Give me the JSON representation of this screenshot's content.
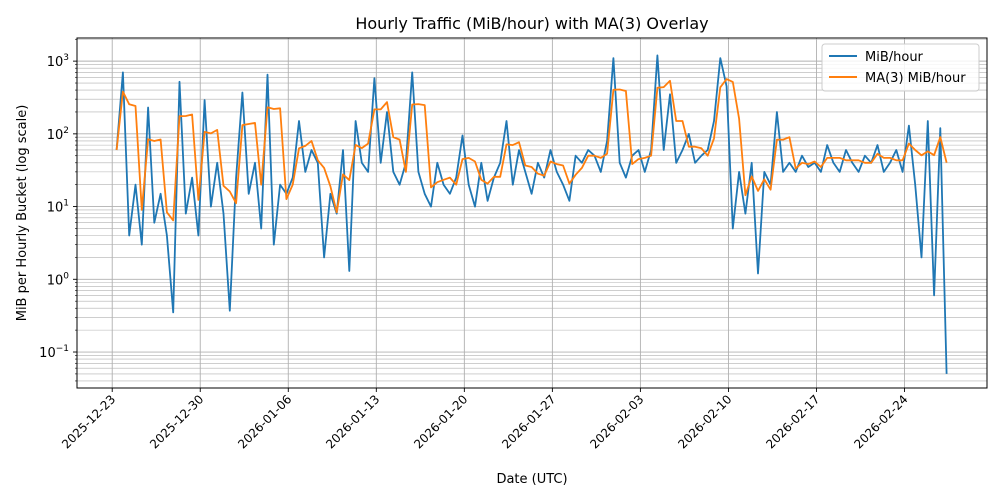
{
  "chart_data": {
    "type": "line",
    "title": "Hourly Traffic (MiB/hour) with MA(3) Overlay",
    "xlabel": "Date (UTC)",
    "ylabel": "MiB per Hourly Bucket (log scale)",
    "yscale": "log",
    "ylim": [
      0.032,
      2080
    ],
    "xlim_days_from_2025_12_23": [
      -2.8,
      69.56
    ],
    "x_tick_labels": [
      "2025-12-23",
      "2025-12-30",
      "2026-01-06",
      "2026-01-13",
      "2026-01-20",
      "2026-01-27",
      "2026-02-03",
      "2026-02-10",
      "2026-02-17",
      "2026-02-24"
    ],
    "y_tick_labels": [
      {
        "base": "10",
        "exp": "−1",
        "value": 0.1
      },
      {
        "base": "10",
        "exp": "0",
        "value": 1
      },
      {
        "base": "10",
        "exp": "1",
        "value": 10
      },
      {
        "base": "10",
        "exp": "2",
        "value": 100
      },
      {
        "base": "10",
        "exp": "3",
        "value": 1000
      }
    ],
    "grid": true,
    "legend_placement": "top-right",
    "x_start_day": 0.35,
    "x_step_days": 0.5,
    "series": [
      {
        "name": "MiB/hour",
        "color": "#1f77b4",
        "values": [
          60,
          700,
          4,
          20,
          3,
          230,
          6,
          15,
          4,
          0.35,
          520,
          8,
          25,
          4,
          290,
          10,
          40,
          8,
          0.37,
          25,
          370,
          15,
          40,
          5,
          650,
          3,
          20,
          15,
          25,
          150,
          30,
          60,
          40,
          2,
          15,
          8,
          60,
          1.3,
          150,
          40,
          30,
          580,
          40,
          200,
          30,
          20,
          40,
          700,
          30,
          15,
          10,
          40,
          20,
          15,
          25,
          95,
          20,
          10,
          40,
          12,
          25,
          40,
          150,
          20,
          60,
          30,
          15,
          40,
          25,
          60,
          30,
          20,
          12,
          50,
          40,
          60,
          50,
          30,
          80,
          1100,
          40,
          25,
          50,
          60,
          30,
          60,
          1200,
          60,
          350,
          40,
          60,
          100,
          40,
          50,
          60,
          150,
          1100,
          450,
          5,
          30,
          8,
          40,
          1.2,
          30,
          20,
          200,
          30,
          40,
          30,
          50,
          35,
          40,
          30,
          70,
          40,
          30,
          60,
          40,
          30,
          50,
          40,
          70,
          30,
          40,
          60,
          30,
          130,
          20,
          2,
          150,
          0.6,
          120,
          0.05
        ]
      },
      {
        "name": "MA(3) MiB/hour",
        "color": "#ff7f0e",
        "window": 3,
        "derived_from": "MiB/hour"
      }
    ]
  }
}
